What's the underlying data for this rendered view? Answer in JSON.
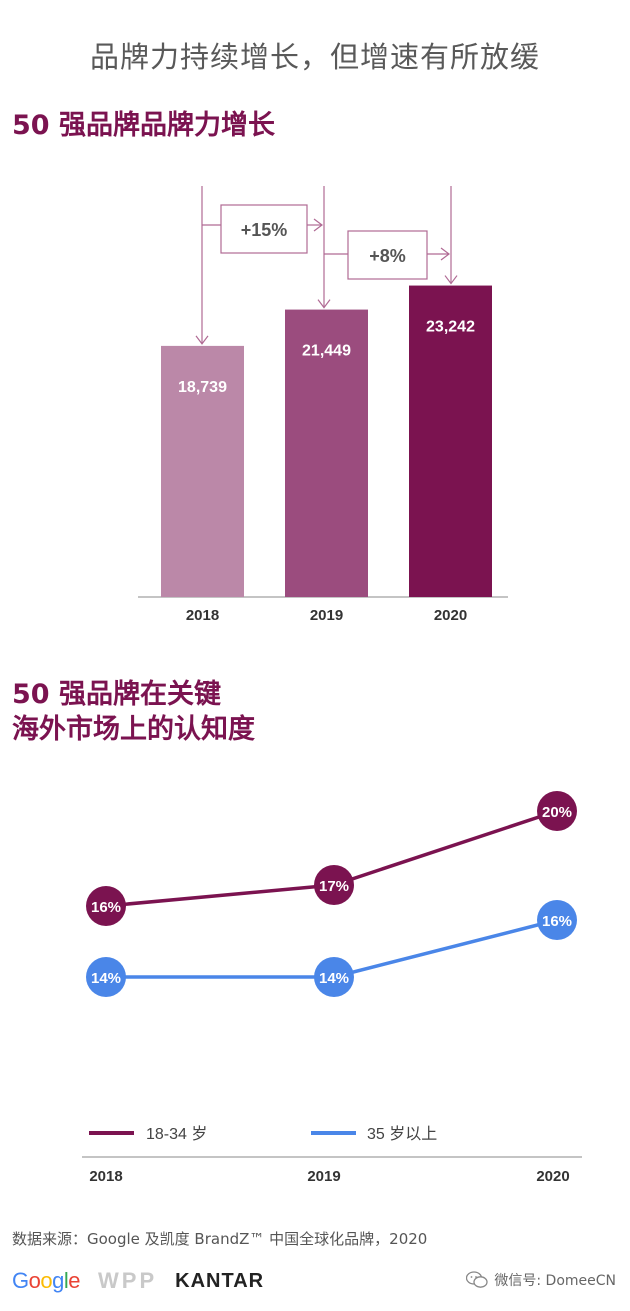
{
  "headline": "品牌力持续增长，但增速有所放缓",
  "bar_section": {
    "title": "50 强品牌品牌力增长"
  },
  "line_section": {
    "title_line1": "50 强品牌在关键",
    "title_line2": "海外市场上的认知度"
  },
  "growth_annotations": [
    "+15%",
    "+8%"
  ],
  "colors": {
    "bar_2018": "#bb88a8",
    "bar_2019": "#9b4c7e",
    "bar_2020": "#7b1350",
    "series_18_34": "#7b1350",
    "series_35_plus": "#4a86e8",
    "accent_text": "#7b1350"
  },
  "chart_data": [
    {
      "type": "bar",
      "categories": [
        "2018",
        "2019",
        "2020"
      ],
      "values": [
        18739,
        21449,
        23242
      ],
      "labels": [
        "18,739",
        "21,449",
        "23,242"
      ],
      "title": "50 强品牌品牌力增长",
      "xlabel": "",
      "ylabel": "",
      "ylim": [
        0,
        26000
      ],
      "grid": false
    },
    {
      "type": "line",
      "x": [
        "2018",
        "2019",
        "2020"
      ],
      "series": [
        {
          "name": "18-34 岁",
          "values": [
            16,
            17,
            20
          ],
          "labels": [
            "16%",
            "17%",
            "20%"
          ]
        },
        {
          "name": "35 岁以上",
          "values": [
            14,
            14,
            16
          ],
          "labels": [
            "14%",
            "14%",
            "16%"
          ]
        }
      ],
      "title": "50 强品牌在关键海外市场上的认知度",
      "ylim": [
        10,
        21
      ],
      "grid": false,
      "legend_placement": "bottom"
    }
  ],
  "source": "数据来源：Google 及凯度 BrandZ™ 中国全球化品牌，2020",
  "logos": {
    "google": "Google",
    "wpp": "WPP",
    "kantar": "KANTAR"
  },
  "watermark": "微信号: DomeeCN"
}
